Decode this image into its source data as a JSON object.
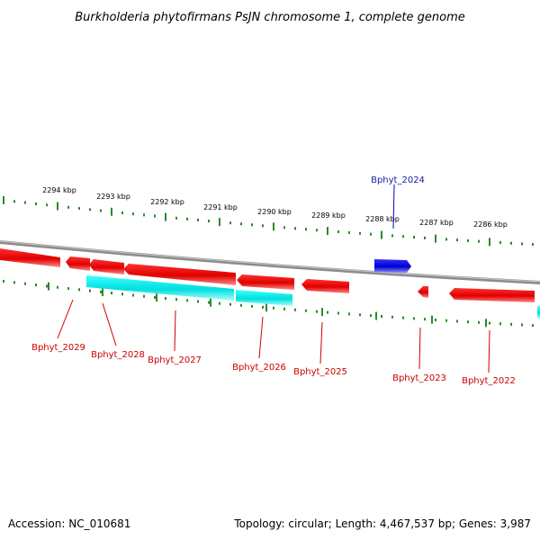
{
  "title": "Burkholderia phytofirmans PsJN chromosome 1, complete genome",
  "footer": {
    "accession": "Accession: NC_010681",
    "summary": "Topology: circular; Length: 4,467,537 bp; Genes: 3,987"
  },
  "colors": {
    "backbone": "#8c8c8c",
    "tick": "#2a8a2a",
    "forward_gene": "#0000dd",
    "reverse_gene": "#ee0000",
    "reverse_gene_alt": "#00e5e5",
    "label_forward": "#1a1aa0",
    "label_reverse": "#cc0000"
  },
  "scale_ticks": [
    {
      "label": "2294 kbp"
    },
    {
      "label": "2293 kbp"
    },
    {
      "label": "2292 kbp"
    },
    {
      "label": "2291 kbp"
    },
    {
      "label": "2290 kbp"
    },
    {
      "label": "2289 kbp"
    },
    {
      "label": "2288 kbp"
    },
    {
      "label": "2287 kbp"
    },
    {
      "label": "2286 kbp"
    }
  ],
  "gene_labels": [
    {
      "name": "Bphyt_2024",
      "strand": "forward"
    },
    {
      "name": "Bphyt_2029",
      "strand": "reverse"
    },
    {
      "name": "Bphyt_2028",
      "strand": "reverse"
    },
    {
      "name": "Bphyt_2027",
      "strand": "reverse"
    },
    {
      "name": "Bphyt_2026",
      "strand": "reverse"
    },
    {
      "name": "Bphyt_2025",
      "strand": "reverse"
    },
    {
      "name": "Bphyt_2023",
      "strand": "reverse"
    },
    {
      "name": "Bphyt_2022",
      "strand": "reverse"
    }
  ]
}
